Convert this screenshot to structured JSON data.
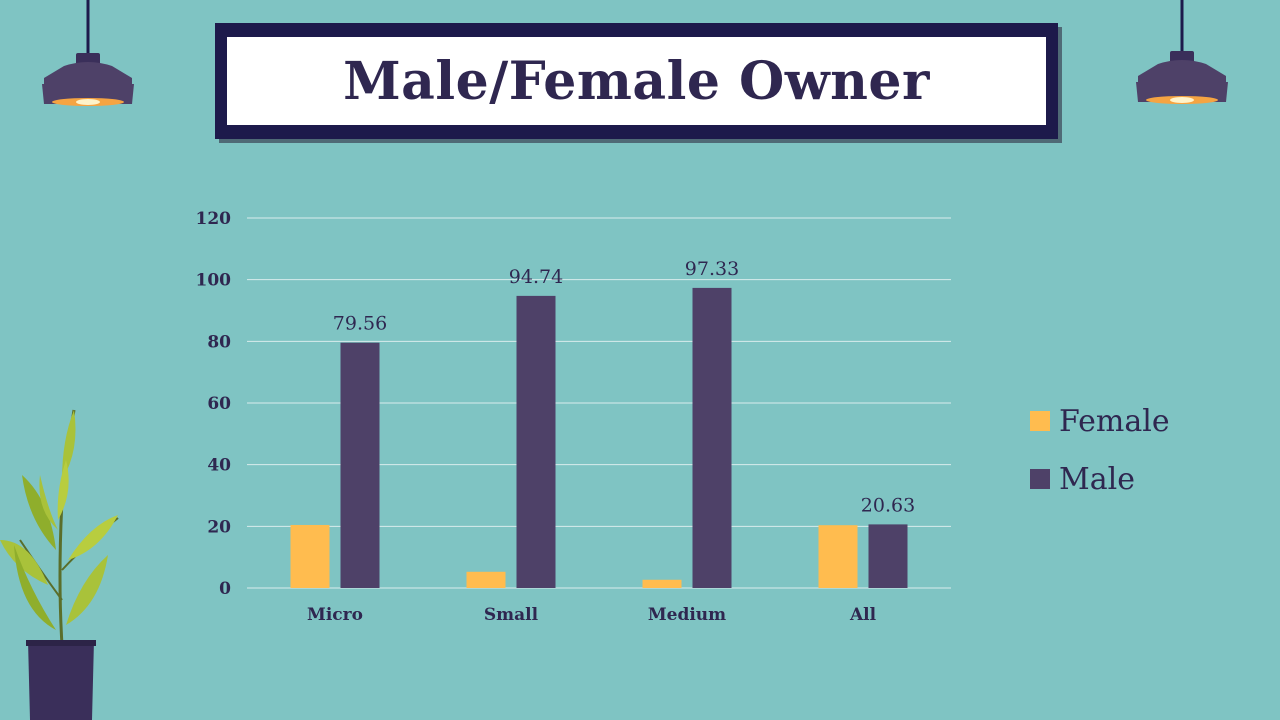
{
  "title": "Male/Female Owner",
  "colors": {
    "background": "#7fc4c3",
    "female": "#ffbc4f",
    "male": "#4e4168",
    "frame": "#1d1a4b",
    "text": "#2f2750"
  },
  "chart_data": {
    "type": "bar",
    "title": "Male/Female Owner",
    "categories": [
      "Micro",
      "Small",
      "Medium",
      "All"
    ],
    "series": [
      {
        "name": "Female",
        "values": [
          20.44,
          5.26,
          2.67,
          20.37
        ],
        "data_labels": [
          null,
          null,
          null,
          null
        ]
      },
      {
        "name": "Male",
        "values": [
          79.56,
          94.74,
          97.33,
          20.63
        ],
        "data_labels": [
          "79.56",
          "94.74",
          "97.33",
          "20.63"
        ]
      }
    ],
    "yticks": [
      "0",
      "20",
      "40",
      "60",
      "80",
      "100",
      "120"
    ],
    "ylim": [
      0,
      120
    ],
    "grid": true,
    "legend_position": "right",
    "xlabel": "",
    "ylabel": ""
  },
  "legend": [
    {
      "label": "Female",
      "color": "#ffbc4f"
    },
    {
      "label": "Male",
      "color": "#4e4168"
    }
  ],
  "decorations": {
    "left_lamp": "pendant-lamp-icon",
    "right_lamp": "pendant-lamp-icon",
    "plant": "potted-plant-icon"
  }
}
